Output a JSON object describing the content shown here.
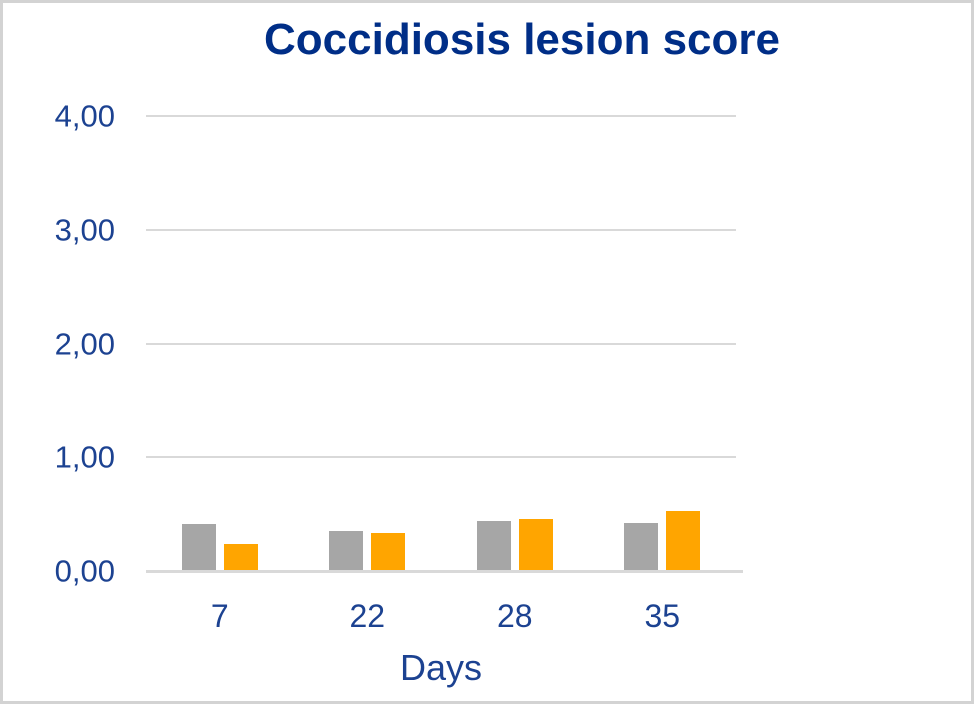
{
  "chart_data": {
    "type": "bar",
    "title": "Coccidiosis lesion score",
    "xlabel": "Days",
    "ylabel": "",
    "categories": [
      "7",
      "22",
      "28",
      "35"
    ],
    "series": [
      {
        "name": "gray-series",
        "color": "#a6a6a6",
        "values": [
          0.41,
          0.35,
          0.44,
          0.42
        ]
      },
      {
        "name": "orange-series",
        "color": "#ffa500",
        "values": [
          0.24,
          0.33,
          0.46,
          0.53
        ]
      }
    ],
    "ylim": [
      0,
      4
    ],
    "yticks": [
      {
        "value": 0,
        "label": "0,00"
      },
      {
        "value": 1,
        "label": "1,00"
      },
      {
        "value": 2,
        "label": "2,00"
      },
      {
        "value": 3,
        "label": "3,00"
      },
      {
        "value": 4,
        "label": "4,00"
      }
    ],
    "grid": true,
    "legend": false,
    "colors": {
      "title_text": "#002e87",
      "axis_text": "#1c4291",
      "gridline": "#d9d9d9",
      "axis_line": "#d9d9d9",
      "frame_border": "#d3d3d3",
      "background": "#ffffff"
    }
  }
}
